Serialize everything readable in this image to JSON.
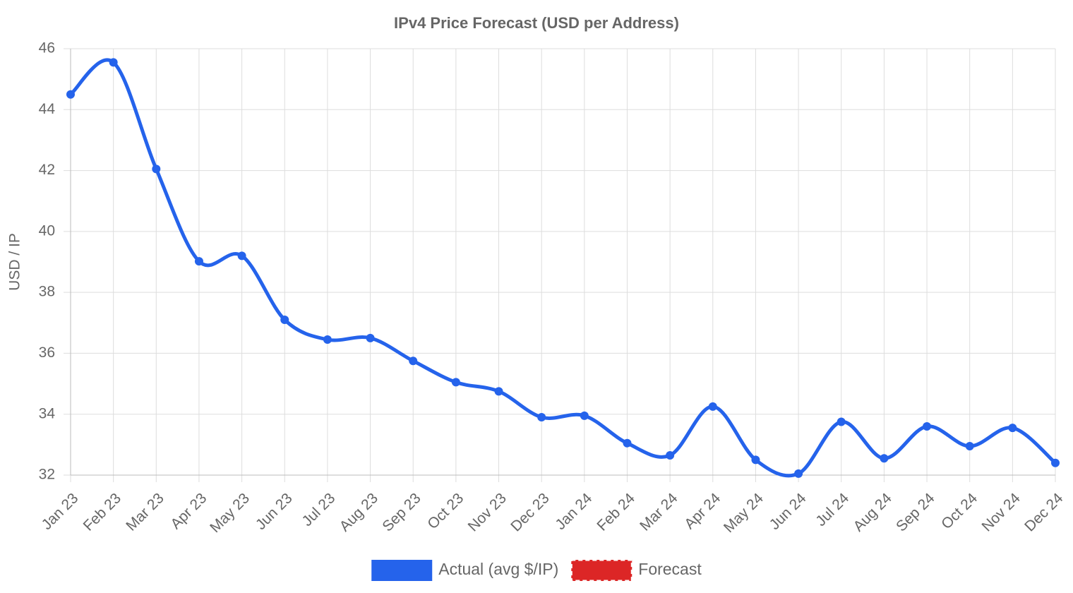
{
  "chart_data": {
    "type": "line",
    "title": "IPv4 Price Forecast (USD per Address)",
    "y_label": "USD / IP",
    "categories": [
      "Jan 23",
      "Feb 23",
      "Mar 23",
      "Apr 23",
      "May 23",
      "Jun 23",
      "Jul 23",
      "Aug 23",
      "Sep 23",
      "Oct 23",
      "Nov 23",
      "Dec 23",
      "Jan 24",
      "Feb 24",
      "Mar 24",
      "Apr 24",
      "May 24",
      "Jun 24",
      "Jul 24",
      "Aug 24",
      "Sep 24",
      "Oct 24",
      "Nov 24",
      "Dec 24"
    ],
    "series": [
      {
        "name": "Actual (avg $/IP)",
        "color": "#2563eb",
        "values": [
          44.5,
          45.55,
          42.05,
          39.02,
          39.2,
          37.1,
          36.45,
          36.5,
          35.75,
          35.05,
          34.75,
          33.9,
          33.95,
          33.05,
          32.65,
          34.25,
          32.5,
          32.05,
          33.75,
          32.55,
          33.6,
          32.95,
          33.55,
          32.4
        ]
      },
      {
        "name": "Forecast",
        "color": "#dc2626",
        "dashed": true,
        "values": [
          null,
          null,
          null,
          null,
          null,
          null,
          null,
          null,
          null,
          null,
          null,
          null,
          null,
          null,
          null,
          null,
          null,
          null,
          null,
          null,
          null,
          null,
          null,
          null
        ]
      }
    ],
    "ylim": [
      32,
      46
    ],
    "yticks": [
      32,
      34,
      36,
      38,
      40,
      42,
      44,
      46
    ],
    "grid": true,
    "legend": "bottom"
  }
}
